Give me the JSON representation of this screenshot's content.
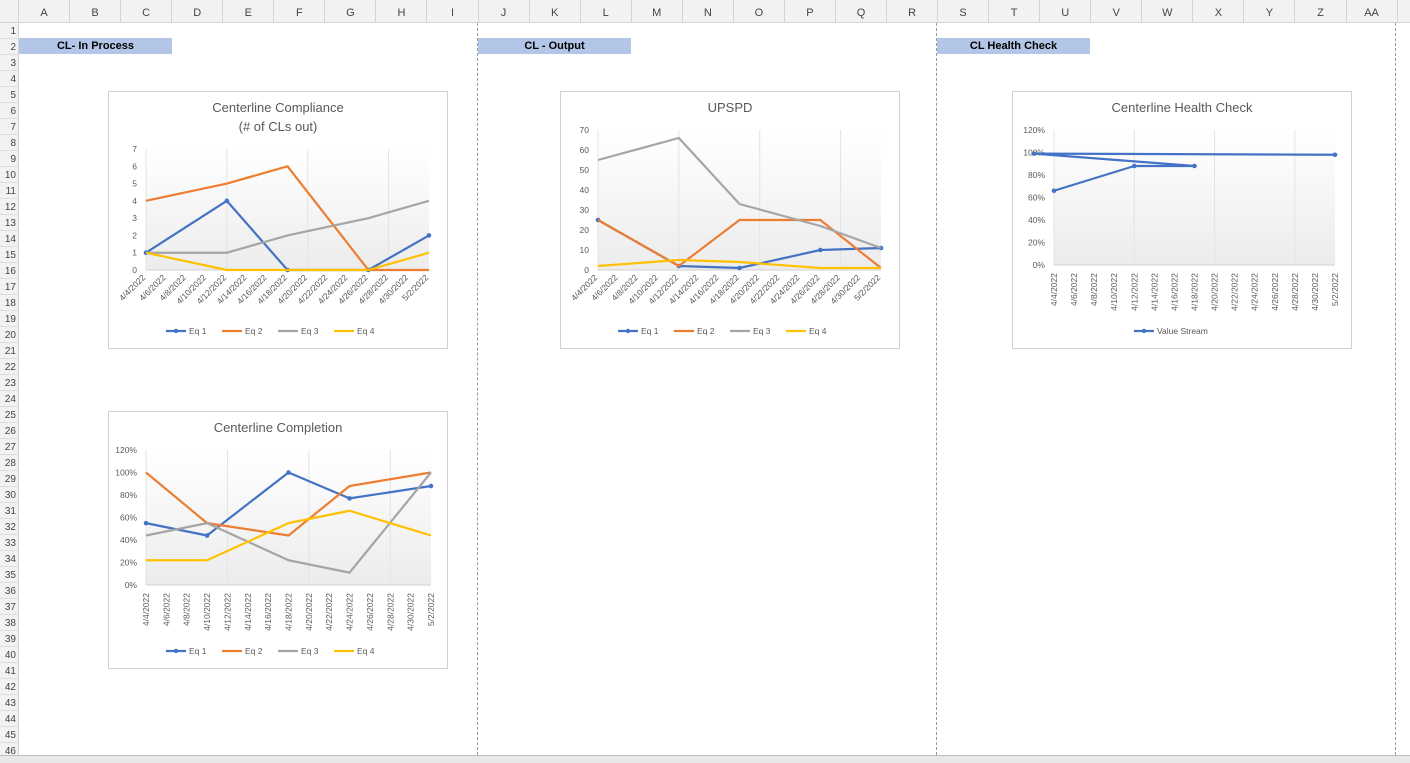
{
  "sheet": {
    "columns": [
      "A",
      "B",
      "C",
      "D",
      "E",
      "F",
      "G",
      "H",
      "I",
      "J",
      "K",
      "L",
      "M",
      "N",
      "O",
      "P",
      "Q",
      "R",
      "S",
      "T",
      "U",
      "V",
      "W",
      "X",
      "Y",
      "Z",
      "AA"
    ],
    "rows": [
      "1",
      "2",
      "3",
      "4",
      "5",
      "6",
      "7",
      "8",
      "9",
      "10",
      "11",
      "12",
      "13",
      "14",
      "15",
      "16",
      "17",
      "18",
      "19",
      "20",
      "21",
      "22",
      "23",
      "24",
      "25",
      "26",
      "27",
      "28",
      "29",
      "30",
      "31",
      "32",
      "33",
      "34",
      "35",
      "36",
      "37",
      "38",
      "39",
      "40",
      "41",
      "42",
      "43",
      "44",
      "45",
      "46"
    ]
  },
  "sections": [
    {
      "label": "CL- In Process"
    },
    {
      "label": "CL - Output"
    },
    {
      "label": "CL Health Check"
    }
  ],
  "colors": {
    "Eq 1": "#4472c4",
    "Eq 2": "#ed7d31",
    "Eq 3": "#a5a5a5",
    "Eq 4": "#ffc000",
    "Value Stream": "#4472c4"
  },
  "chart_data": [
    {
      "type": "line",
      "title": "Centerline Compliance",
      "subtitle": "(# of CLs out)",
      "x": [
        "4/4/2022",
        "4/6/2022",
        "4/8/2022",
        "4/10/2022",
        "4/12/2022",
        "4/14/2022",
        "4/16/2022",
        "4/18/2022",
        "4/20/2022",
        "4/22/2022",
        "4/24/2022",
        "4/26/2022",
        "4/28/2022",
        "4/30/2022",
        "5/2/2022"
      ],
      "ylim": [
        0,
        7
      ],
      "yticks": [
        "0",
        "1",
        "2",
        "3",
        "4",
        "5",
        "6",
        "7"
      ],
      "legend": "bottom",
      "series": [
        {
          "name": "Eq 1",
          "x": [
            "4/4/2022",
            "4/12/2022",
            "4/18/2022",
            "4/26/2022",
            "5/2/2022"
          ],
          "values": [
            1,
            4,
            0,
            0,
            2
          ],
          "markers": true
        },
        {
          "name": "Eq 2",
          "x": [
            "4/4/2022",
            "4/12/2022",
            "4/18/2022",
            "4/26/2022",
            "5/2/2022"
          ],
          "values": [
            4,
            5,
            6,
            0,
            0
          ],
          "markers": false
        },
        {
          "name": "Eq 3",
          "x": [
            "4/4/2022",
            "4/12/2022",
            "4/18/2022",
            "4/26/2022",
            "5/2/2022"
          ],
          "values": [
            1,
            1,
            2,
            3,
            4
          ],
          "markers": false
        },
        {
          "name": "Eq 4",
          "x": [
            "4/4/2022",
            "4/12/2022",
            "4/18/2022",
            "4/26/2022",
            "5/2/2022"
          ],
          "values": [
            1,
            0,
            0,
            0,
            1
          ],
          "markers": false
        }
      ]
    },
    {
      "type": "line",
      "title": "UPSPD",
      "x": [
        "4/4/2022",
        "4/6/2022",
        "4/8/2022",
        "4/10/2022",
        "4/12/2022",
        "4/14/2022",
        "4/16/2022",
        "4/18/2022",
        "4/20/2022",
        "4/22/2022",
        "4/24/2022",
        "4/26/2022",
        "4/28/2022",
        "4/30/2022",
        "5/2/2022"
      ],
      "ylim": [
        0,
        70
      ],
      "yticks": [
        "0",
        "10",
        "20",
        "30",
        "40",
        "50",
        "60",
        "70"
      ],
      "legend": "bottom",
      "series": [
        {
          "name": "Eq 1",
          "x": [
            "4/4/2022",
            "4/12/2022",
            "4/18/2022",
            "4/26/2022",
            "5/2/2022"
          ],
          "values": [
            25,
            2,
            1,
            10,
            11
          ],
          "markers": true
        },
        {
          "name": "Eq 2",
          "x": [
            "4/4/2022",
            "4/12/2022",
            "4/18/2022",
            "4/26/2022",
            "5/2/2022"
          ],
          "values": [
            25,
            2,
            25,
            25,
            1
          ],
          "markers": false
        },
        {
          "name": "Eq 3",
          "x": [
            "4/4/2022",
            "4/12/2022",
            "4/18/2022",
            "4/26/2022",
            "5/2/2022"
          ],
          "values": [
            55,
            66,
            33,
            22,
            11
          ],
          "markers": false
        },
        {
          "name": "Eq 4",
          "x": [
            "4/4/2022",
            "4/12/2022",
            "4/18/2022",
            "4/26/2022",
            "5/2/2022"
          ],
          "values": [
            2,
            5,
            4,
            1,
            1
          ],
          "markers": false
        }
      ]
    },
    {
      "type": "line",
      "title": "Centerline Completion",
      "x": [
        "4/4/2022",
        "4/6/2022",
        "4/8/2022",
        "4/10/2022",
        "4/12/2022",
        "4/14/2022",
        "4/16/2022",
        "4/18/2022",
        "4/20/2022",
        "4/22/2022",
        "4/24/2022",
        "4/26/2022",
        "4/28/2022",
        "4/30/2022",
        "5/2/2022"
      ],
      "ylim": [
        0,
        1.2
      ],
      "yticks": [
        "0%",
        "20%",
        "40%",
        "60%",
        "80%",
        "100%",
        "120%"
      ],
      "legend": "bottom",
      "series": [
        {
          "name": "Eq 1",
          "x": [
            "4/4/2022",
            "4/10/2022",
            "4/18/2022",
            "4/24/2022",
            "5/2/2022"
          ],
          "values": [
            0.55,
            0.44,
            1.0,
            0.77,
            0.88
          ],
          "markers": true
        },
        {
          "name": "Eq 2",
          "x": [
            "4/4/2022",
            "4/10/2022",
            "4/18/2022",
            "4/24/2022",
            "5/2/2022"
          ],
          "values": [
            1.0,
            0.55,
            0.44,
            0.88,
            1.0
          ],
          "markers": false
        },
        {
          "name": "Eq 3",
          "x": [
            "4/4/2022",
            "4/10/2022",
            "4/18/2022",
            "4/24/2022",
            "5/2/2022"
          ],
          "values": [
            0.44,
            0.55,
            0.22,
            0.11,
            1.0
          ],
          "markers": false
        },
        {
          "name": "Eq 4",
          "x": [
            "4/4/2022",
            "4/10/2022",
            "4/18/2022",
            "4/24/2022",
            "5/2/2022"
          ],
          "values": [
            0.22,
            0.22,
            0.55,
            0.66,
            0.44
          ],
          "markers": false
        }
      ]
    },
    {
      "type": "line",
      "title": "Centerline Health Check",
      "x": [
        "4/4/2022",
        "4/6/2022",
        "4/8/2022",
        "4/10/2022",
        "4/12/2022",
        "4/14/2022",
        "4/16/2022",
        "4/18/2022",
        "4/20/2022",
        "4/22/2022",
        "4/24/2022",
        "4/26/2022",
        "4/28/2022",
        "4/30/2022",
        "5/2/2022"
      ],
      "ylim": [
        0,
        1.2
      ],
      "yticks": [
        "0%",
        "20%",
        "40%",
        "60%",
        "80%",
        "100%",
        "120%"
      ],
      "legend": "bottom",
      "series": [
        {
          "name": "Value Stream",
          "x": [
            "4/4/2022",
            "4/12/2022",
            "4/18/2022",
            "4/25/2022",
            "5/2/2022"
          ],
          "values": [
            0.66,
            0.88,
            0.88,
            0.99,
            0.98
          ],
          "markers": true
        }
      ]
    }
  ]
}
